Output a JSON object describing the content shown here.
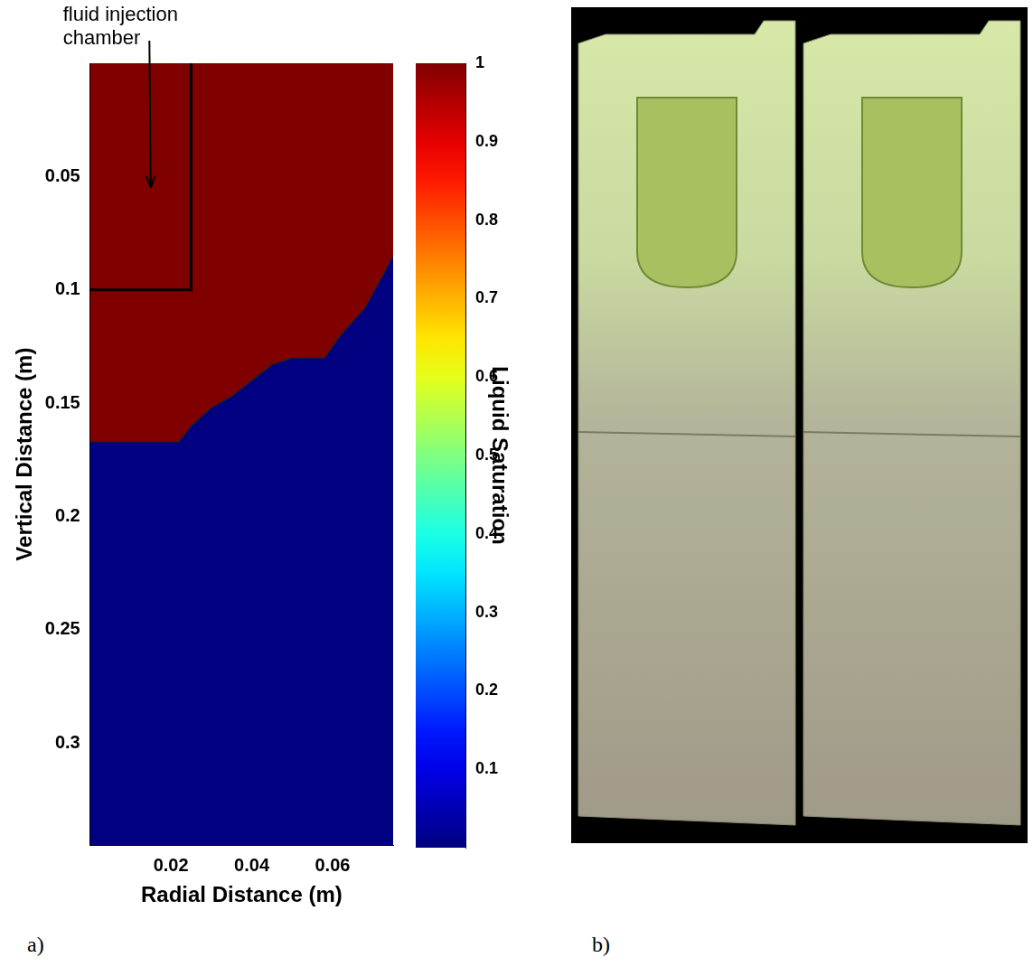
{
  "chart_data": {
    "type": "contour",
    "panel_label": "a)",
    "annotation": {
      "text": "fluid injection chamber",
      "x": 0.015,
      "y": 0.055
    },
    "xlabel": "Radial Distance (m)",
    "ylabel": "Vertical Distance (m)",
    "xlim": [
      0,
      0.075
    ],
    "xticks": [
      0.02,
      0.04,
      0.06
    ],
    "ylim": [
      0,
      0.345
    ],
    "yticks": [
      0.05,
      0.1,
      0.15,
      0.2,
      0.25,
      0.3
    ],
    "front": {
      "x": [
        0,
        0.022,
        0.025,
        0.03,
        0.035,
        0.04,
        0.045,
        0.05,
        0.058,
        0.062,
        0.068,
        0.072,
        0.075
      ],
      "y": [
        0.167,
        0.167,
        0.16,
        0.152,
        0.147,
        0.14,
        0.133,
        0.13,
        0.13,
        0.12,
        0.108,
        0.095,
        0.085
      ]
    },
    "saturation_behind_front": 1,
    "saturation_ahead_of_front": 0,
    "chamber": {
      "x": [
        0.025,
        0.025,
        0
      ],
      "y": [
        0,
        0.1,
        0.1
      ]
    },
    "colorbar": {
      "label": "Liquid Saturation",
      "range": [
        0,
        1
      ],
      "ticks": [
        0.1,
        0.2,
        0.3,
        0.4,
        0.5,
        0.6,
        0.7,
        0.8,
        0.9,
        1
      ]
    }
  },
  "photo": {
    "panel_label": "b)"
  }
}
